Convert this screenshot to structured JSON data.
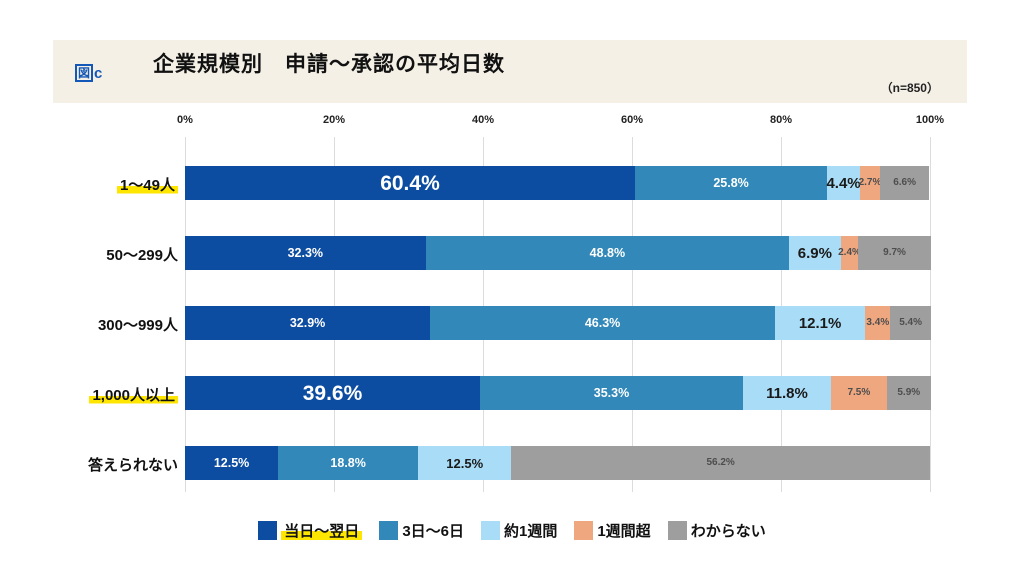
{
  "header": {
    "figure_box": "図",
    "figure_letter": "c",
    "title": "企業規模別　申請～承認の平均日数",
    "sample_size": "（n=850）"
  },
  "chart_data": {
    "type": "bar",
    "stacked": true,
    "orientation": "horizontal",
    "title": "企業規模別　申請～承認の平均日数",
    "sample_size_note": "（n=850）",
    "x_ticks": [
      "0%",
      "20%",
      "40%",
      "60%",
      "80%",
      "100%"
    ],
    "xlim": [
      0,
      100
    ],
    "grid": true,
    "legend_position": "bottom",
    "categories": [
      "1～49人",
      "50～299人",
      "300～999人",
      "1,000人以上",
      "答えられない"
    ],
    "highlighted_category_indexes": [
      0,
      3
    ],
    "emphasized_first_segment_rows": [
      0,
      3
    ],
    "series": [
      {
        "name": "当日～翌日",
        "color": "#0d4da1",
        "highlighted_in_legend": true,
        "values": [
          60.4,
          32.3,
          32.9,
          39.6,
          12.5
        ]
      },
      {
        "name": "3日～6日",
        "color": "#3288b8",
        "highlighted_in_legend": false,
        "values": [
          25.8,
          48.8,
          46.3,
          35.3,
          18.8
        ]
      },
      {
        "name": "約1週間",
        "color": "#a9dcf6",
        "highlighted_in_legend": false,
        "values": [
          4.4,
          6.9,
          12.1,
          11.8,
          12.5
        ]
      },
      {
        "name": "1週間超",
        "color": "#efa780",
        "highlighted_in_legend": false,
        "values": [
          2.7,
          2.4,
          3.4,
          7.5,
          0
        ]
      },
      {
        "name": "わからない",
        "color": "#9e9e9e",
        "highlighted_in_legend": false,
        "values": [
          6.6,
          9.7,
          5.4,
          5.9,
          56.2
        ]
      }
    ]
  },
  "colors": {
    "header_background": "#f4f0e6",
    "highlight_yellow": "#ffe600",
    "figure_tag_blue": "#1358b8",
    "gridline": "#dcdcdc",
    "small_label_text": "#4d4d4d"
  }
}
